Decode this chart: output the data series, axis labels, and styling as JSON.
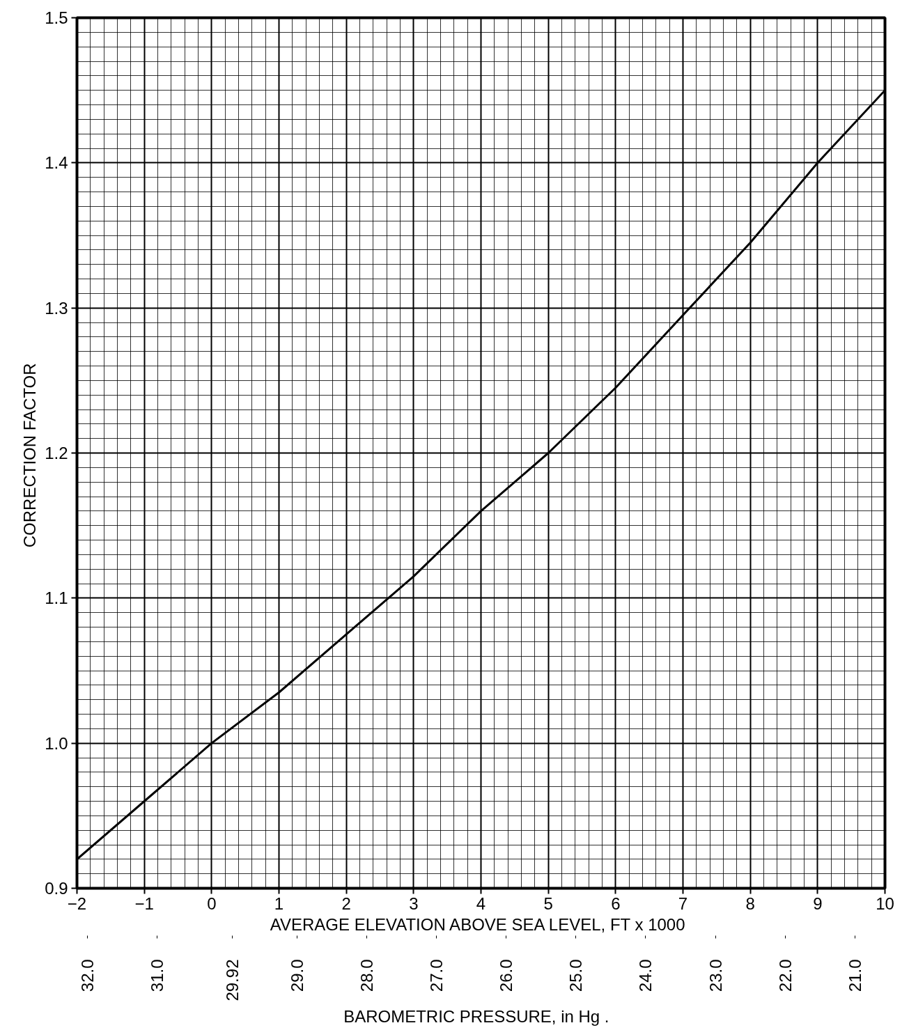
{
  "chart_data": {
    "type": "line",
    "xlabel": "AVERAGE ELEVATION ABOVE SEA LEVEL,  FT x 1000",
    "ylabel": "CORRECTION  FACTOR",
    "x2label": "BAROMETRIC  PRESSURE,  in Hg .",
    "x": [
      -2,
      -1,
      0,
      1,
      2,
      3,
      4,
      5,
      6,
      7,
      8,
      9,
      10
    ],
    "series": [
      {
        "color": "#000000",
        "values": [
          0.92,
          0.96,
          1.0,
          1.035,
          1.075,
          1.115,
          1.16,
          1.2,
          1.245,
          1.295,
          1.345,
          1.4,
          1.45
        ]
      }
    ],
    "xlim": [
      -2,
      10
    ],
    "ylim": [
      0.9,
      1.5
    ],
    "xticks": [
      {
        "value": -2,
        "label": "−2"
      },
      {
        "value": -1,
        "label": "−1"
      },
      0,
      1,
      2,
      3,
      4,
      5,
      6,
      7,
      8,
      9,
      10
    ],
    "yticks": [
      {
        "value": 0.9,
        "label": "0.9"
      },
      {
        "value": 1.0,
        "label": "1.0"
      },
      {
        "value": 1.1,
        "label": "1.1"
      },
      {
        "value": 1.2,
        "label": "1.2"
      },
      {
        "value": 1.3,
        "label": "1.3"
      },
      {
        "value": 1.4,
        "label": "1.4"
      },
      {
        "value": 1.5,
        "label": "1.5"
      }
    ],
    "x2lim": [
      32.15,
      20.57
    ],
    "x2ticks": [
      {
        "value": 32.0,
        "label": "32.0"
      },
      {
        "value": 31.0,
        "label": "31.0"
      },
      29.92,
      {
        "value": 29.0,
        "label": "29.0"
      },
      {
        "value": 28.0,
        "label": "28.0"
      },
      {
        "value": 27.0,
        "label": "27.0"
      },
      {
        "value": 26.0,
        "label": "26.0"
      },
      {
        "value": 25.0,
        "label": "25.0"
      },
      {
        "value": 24.0,
        "label": "24.0"
      },
      {
        "value": 23.0,
        "label": "23.0"
      },
      {
        "value": 22.0,
        "label": "22.0"
      },
      {
        "value": 21.0,
        "label": "21.0"
      }
    ],
    "grid": true,
    "marker": "none",
    "line_style": "solid"
  }
}
